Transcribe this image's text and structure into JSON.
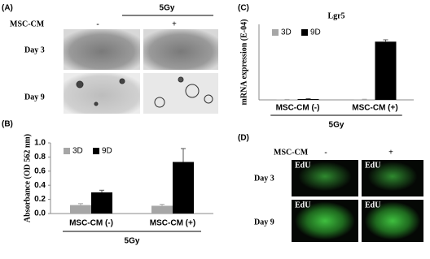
{
  "chart_data": [
    {
      "type": "bar",
      "ylabel": "Absorbance (OD 562 nm)",
      "categories": [
        "MSC-CM (-)",
        "MSC-CM (+)"
      ],
      "group_label": "5Gy",
      "series": [
        {
          "name": "3D",
          "color": "#a6a6a6",
          "values": [
            0.12,
            0.11
          ],
          "errors": [
            0.02,
            0.02
          ]
        },
        {
          "name": "9D",
          "color": "#000000",
          "values": [
            0.3,
            0.73
          ],
          "errors": [
            0.03,
            0.19
          ]
        }
      ],
      "ylim": [
        0,
        1.0
      ],
      "yticks": [
        {
          "value": 0,
          "label": "0.0"
        },
        0.2,
        0.4,
        0.6,
        0.8,
        {
          "value": 1.0,
          "label": "1.0"
        }
      ],
      "legend": "upper left"
    },
    {
      "type": "bar",
      "title": "Lgr5",
      "ylabel": "mRNA expression (E-04)",
      "categories": [
        "MSC-CM (-)",
        "MSC-CM (+)"
      ],
      "group_label": "5Gy",
      "series": [
        {
          "name": "3D",
          "color": "#a6a6a6",
          "values": [
            0.02,
            0.03
          ],
          "errors": [
            0.01,
            0.01
          ]
        },
        {
          "name": "9D",
          "color": "#000000",
          "values": [
            0.05,
            3.7
          ],
          "errors": [
            0.03,
            0.12
          ]
        }
      ],
      "ylim": [
        0,
        4.8
      ],
      "legend": "upper left"
    }
  ],
  "figure": {
    "panel_labels": [
      "(A)",
      "(B)",
      "(C)",
      "(D)"
    ],
    "panel_a": {
      "treatment": "5Gy",
      "factor": "MSC-CM",
      "conditions": [
        "-",
        "+"
      ],
      "rows": [
        "Day 3",
        "Day 9"
      ]
    },
    "panel_d": {
      "factor": "MSC-CM",
      "conditions": [
        "-",
        "+"
      ],
      "rows": [
        "Day 3",
        "Day 9"
      ],
      "stain": "EdU"
    }
  }
}
